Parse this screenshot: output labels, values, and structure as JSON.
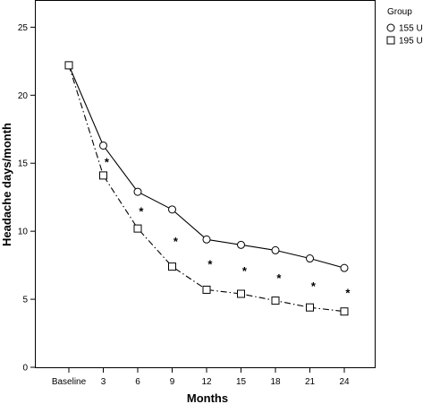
{
  "chart_data": {
    "type": "line",
    "title": "",
    "xlabel": "Months",
    "ylabel": "Headache days/month",
    "categories": [
      "Baseline",
      "3",
      "6",
      "9",
      "12",
      "15",
      "18",
      "21",
      "24"
    ],
    "ylim": [
      0,
      27
    ],
    "yticks": [
      "0",
      "5",
      "10",
      "15",
      "20",
      "25"
    ],
    "grid": false,
    "legend": {
      "title": "Group",
      "position": "top-right",
      "entries": [
        "155 U",
        "195 U"
      ]
    },
    "series": [
      {
        "name": "155 U",
        "marker": "circle",
        "line": "solid",
        "values": [
          22.2,
          16.3,
          12.9,
          11.6,
          9.4,
          9.0,
          8.6,
          8.0,
          7.3
        ]
      },
      {
        "name": "195 U",
        "marker": "square",
        "line": "dash-dot",
        "values": [
          22.2,
          14.1,
          10.2,
          7.4,
          5.7,
          5.4,
          4.9,
          4.4,
          4.1
        ]
      }
    ],
    "annotations": [
      {
        "text": "*",
        "x": 3.3,
        "y": 15.1
      },
      {
        "text": "*",
        "x": 6.3,
        "y": 11.5
      },
      {
        "text": "*",
        "x": 9.3,
        "y": 9.3
      },
      {
        "text": "*",
        "x": 12.3,
        "y": 7.6
      },
      {
        "text": "*",
        "x": 15.3,
        "y": 7.1
      },
      {
        "text": "*",
        "x": 18.3,
        "y": 6.6
      },
      {
        "text": "*",
        "x": 21.3,
        "y": 6.0
      },
      {
        "text": "*",
        "x": 24.3,
        "y": 5.5
      }
    ]
  }
}
